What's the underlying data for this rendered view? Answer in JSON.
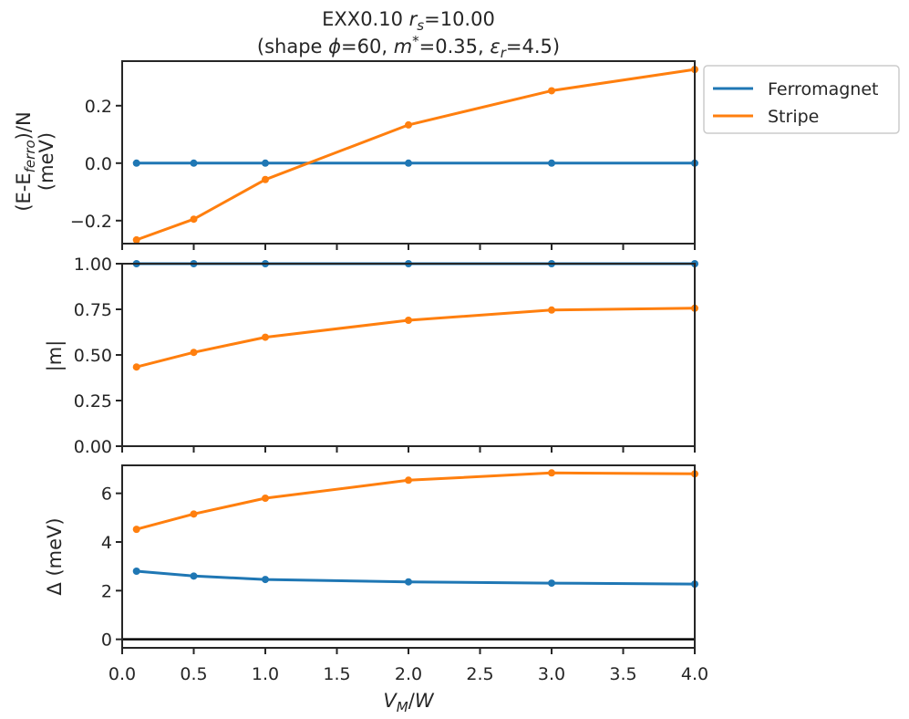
{
  "chart_data": {
    "type": "line",
    "title_line1": "EXX0.10 r_s=10.00",
    "title_line2": "(shape ϕ=60, m*=0.35, ε_r=4.5)",
    "title": {
      "line1_prefix": "EXX0.10 ",
      "line1_var": "r",
      "line1_sub": "s",
      "line1_suffix": "=10.00",
      "line2_a": "(shape ",
      "line2_phi": "ϕ",
      "line2_b": "=60, ",
      "line2_m": "m",
      "line2_star": "*",
      "line2_c": "=0.35, ",
      "line2_eps": "ε",
      "line2_eps_sub": "r",
      "line2_d": "=4.5)"
    },
    "xlabel": "V_M/W",
    "xlabel_parts": {
      "v": "V",
      "v_sub": "M",
      "slash": "/",
      "w": "W"
    },
    "xlim": [
      0.0,
      4.0
    ],
    "xticks": [
      "0.0",
      "0.5",
      "1.0",
      "1.5",
      "2.0",
      "2.5",
      "3.0",
      "3.5",
      "4.0"
    ],
    "x": [
      0.1,
      0.5,
      1.0,
      2.0,
      3.0,
      4.0
    ],
    "legend": {
      "location": "upper-right-outside",
      "entries": [
        {
          "name": "Ferromagnet",
          "color": "#1f77b4"
        },
        {
          "name": "Stripe",
          "color": "#ff7f0e"
        }
      ]
    },
    "panels": [
      {
        "id": "energy",
        "ylabel": "(E-E_ferro)/N (meV)",
        "ylabel_parts": {
          "line1_prefix": "(E-E",
          "line1_sub": "ferro",
          "line1_suffix": ")/N",
          "line2": "(meV)"
        },
        "ylim": [
          -0.28,
          0.355
        ],
        "yticks": [
          -0.2,
          0.0,
          0.2
        ],
        "ytick_labels": [
          "−0.2",
          "0.0",
          "0.2"
        ],
        "series": [
          {
            "name": "Ferromagnet",
            "color": "#1f77b4",
            "values": [
              0.0,
              0.0,
              0.0,
              0.0,
              0.0,
              0.0
            ]
          },
          {
            "name": "Stripe",
            "color": "#ff7f0e",
            "values": [
              -0.267,
              -0.195,
              -0.057,
              0.133,
              0.252,
              0.326
            ]
          }
        ]
      },
      {
        "id": "magnetization",
        "ylabel": "|m|",
        "ylim": [
          0.0,
          1.0
        ],
        "yticks": [
          0.0,
          0.25,
          0.5,
          0.75,
          1.0
        ],
        "ytick_labels": [
          "0.00",
          "0.25",
          "0.50",
          "0.75",
          "1.00"
        ],
        "series": [
          {
            "name": "Ferromagnet",
            "color": "#1f77b4",
            "values": [
              1.0,
              1.0,
              1.0,
              1.0,
              1.0,
              1.0
            ]
          },
          {
            "name": "Stripe",
            "color": "#ff7f0e",
            "values": [
              0.434,
              0.514,
              0.597,
              0.69,
              0.746,
              0.756
            ]
          }
        ]
      },
      {
        "id": "gap",
        "ylabel": "Δ (meV)",
        "ylim": [
          -0.35,
          7.15
        ],
        "yticks": [
          0,
          2,
          4,
          6
        ],
        "ytick_labels": [
          "0",
          "2",
          "4",
          "6"
        ],
        "hline": 0,
        "series": [
          {
            "name": "Ferromagnet",
            "color": "#1f77b4",
            "values": [
              2.8,
              2.6,
              2.46,
              2.36,
              2.31,
              2.27
            ]
          },
          {
            "name": "Stripe",
            "color": "#ff7f0e",
            "values": [
              4.52,
              5.15,
              5.8,
              6.54,
              6.84,
              6.8
            ]
          }
        ]
      }
    ]
  }
}
